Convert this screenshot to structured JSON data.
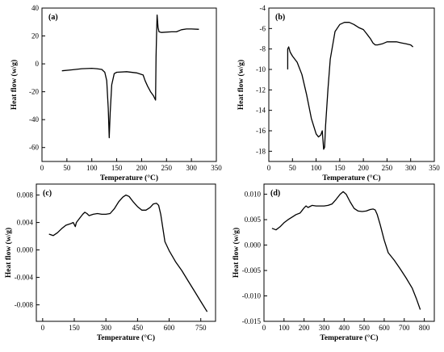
{
  "chart_data": [
    {
      "type": "line",
      "panel_label": "(a)",
      "xlabel": "Temperature (°C)",
      "ylabel": "Heat flow (w/g)",
      "xlim": [
        0,
        350
      ],
      "ylim": [
        -70,
        40
      ],
      "xticks": [
        "0",
        "50",
        "100",
        "150",
        "200",
        "250",
        "300",
        "350"
      ],
      "yticks": [
        "-60",
        "-40",
        "-20",
        "0",
        "20",
        "40"
      ],
      "xtick_values": [
        0,
        50,
        100,
        150,
        200,
        250,
        300,
        350
      ],
      "ytick_values": [
        -60,
        -40,
        -20,
        0,
        20,
        40
      ],
      "grid": false,
      "series": [
        {
          "x": [
            40,
            60,
            80,
            100,
            110,
            120,
            126,
            130,
            133,
            135,
            137,
            140,
            145,
            150,
            170,
            190,
            203,
            207,
            212,
            218,
            224,
            228,
            229,
            230,
            231,
            233,
            235,
            240,
            260,
            270,
            280,
            290,
            300,
            315
          ],
          "y": [
            -5,
            -4.3,
            -3.5,
            -3.2,
            -3.5,
            -4,
            -6,
            -12,
            -32,
            -53,
            -35,
            -15,
            -7,
            -6,
            -5.6,
            -6.5,
            -8,
            -12,
            -16,
            -20,
            -23,
            -26,
            5,
            20,
            35,
            26,
            23,
            22.5,
            23,
            23,
            24.5,
            25,
            25,
            24.8
          ]
        }
      ]
    },
    {
      "type": "line",
      "panel_label": "(b)",
      "xlabel": "Temperature (°C)",
      "ylabel": "Heat flow (w/g)",
      "xlim": [
        0,
        350
      ],
      "ylim": [
        -19,
        -4
      ],
      "xticks": [
        "0",
        "50",
        "100",
        "150",
        "200",
        "250",
        "300",
        "350"
      ],
      "yticks": [
        "-18",
        "-16",
        "-14",
        "-12",
        "-10",
        "-8",
        "-6",
        "-4"
      ],
      "xtick_values": [
        0,
        50,
        100,
        150,
        200,
        250,
        300,
        350
      ],
      "ytick_values": [
        -18,
        -16,
        -14,
        -12,
        -10,
        -8,
        -6,
        -4
      ],
      "grid": false,
      "series": [
        {
          "x": [
            40,
            40,
            42,
            45,
            50,
            60,
            70,
            80,
            90,
            100,
            105,
            110,
            113,
            116,
            118,
            120,
            125,
            130,
            140,
            150,
            160,
            170,
            180,
            190,
            200,
            205,
            210,
            215,
            220,
            225,
            230,
            240,
            250,
            260,
            270,
            280,
            290,
            300,
            305
          ],
          "y": [
            -10,
            -8,
            -7.8,
            -8.3,
            -8.7,
            -9.3,
            -10.5,
            -12.5,
            -14.8,
            -16.3,
            -16.6,
            -16.4,
            -16,
            -17.8,
            -17.6,
            -15.5,
            -12,
            -9,
            -6.3,
            -5.6,
            -5.4,
            -5.4,
            -5.6,
            -5.9,
            -6.1,
            -6.4,
            -6.7,
            -7,
            -7.4,
            -7.6,
            -7.6,
            -7.5,
            -7.3,
            -7.3,
            -7.3,
            -7.4,
            -7.5,
            -7.6,
            -7.8
          ]
        }
      ]
    },
    {
      "type": "line",
      "panel_label": "(c)",
      "xlabel": "Temperature (°C)",
      "ylabel": "Heat flow (w/g)",
      "xlim": [
        -30,
        820
      ],
      "ylim": [
        -0.0104,
        0.0096
      ],
      "xticks": [
        "0",
        "150",
        "300",
        "450",
        "600",
        "750"
      ],
      "yticks": [
        "-0.008",
        "-0.004",
        "0.000",
        "0.004",
        "0.008"
      ],
      "xtick_values": [
        0,
        150,
        300,
        450,
        600,
        750
      ],
      "ytick_values": [
        -0.008,
        -0.004,
        0,
        0.004,
        0.008
      ],
      "grid": false,
      "series": [
        {
          "x": [
            30,
            50,
            70,
            90,
            110,
            130,
            145,
            155,
            160,
            175,
            190,
            200,
            210,
            220,
            240,
            260,
            280,
            300,
            320,
            340,
            360,
            380,
            395,
            410,
            430,
            450,
            470,
            490,
            510,
            525,
            540,
            550,
            560,
            570,
            580,
            600,
            630,
            660,
            690,
            720,
            750,
            780
          ],
          "y": [
            0.0023,
            0.0021,
            0.0025,
            0.0031,
            0.0036,
            0.0038,
            0.004,
            0.0034,
            0.004,
            0.0046,
            0.0052,
            0.0055,
            0.0053,
            0.005,
            0.0052,
            0.0053,
            0.0052,
            0.0052,
            0.0053,
            0.006,
            0.007,
            0.0077,
            0.008,
            0.0078,
            0.007,
            0.0063,
            0.0058,
            0.0058,
            0.0062,
            0.0067,
            0.0068,
            0.0065,
            0.0052,
            0.0032,
            0.0012,
            -0.0001,
            -0.0017,
            -0.003,
            -0.0045,
            -0.006,
            -0.0075,
            -0.009
          ]
        }
      ]
    },
    {
      "type": "line",
      "panel_label": "(d)",
      "xlabel": "Temperature (°C)",
      "ylabel": "Heat flow (w/g)",
      "xlim": [
        0,
        850
      ],
      "ylim": [
        -0.015,
        0.012
      ],
      "xticks": [
        "0",
        "100",
        "200",
        "300",
        "400",
        "500",
        "600",
        "700",
        "800"
      ],
      "yticks": [
        "-0.015",
        "-0.010",
        "-0.005",
        "0.000",
        "0.005",
        "0.010"
      ],
      "xtick_values": [
        0,
        100,
        200,
        300,
        400,
        500,
        600,
        700,
        800
      ],
      "ytick_values": [
        -0.015,
        -0.01,
        -0.005,
        0,
        0.005,
        0.01
      ],
      "grid": false,
      "series": [
        {
          "x": [
            40,
            60,
            80,
            100,
            120,
            140,
            160,
            180,
            190,
            200,
            210,
            220,
            240,
            260,
            280,
            300,
            320,
            340,
            360,
            380,
            395,
            410,
            430,
            450,
            470,
            490,
            510,
            530,
            545,
            555,
            565,
            580,
            600,
            620,
            650,
            680,
            710,
            740,
            760,
            780
          ],
          "y": [
            0.0033,
            0.003,
            0.0036,
            0.0044,
            0.005,
            0.0055,
            0.006,
            0.0063,
            0.0068,
            0.0073,
            0.0077,
            0.0074,
            0.0078,
            0.0077,
            0.0077,
            0.0077,
            0.0078,
            0.0081,
            0.009,
            0.01,
            0.0105,
            0.01,
            0.0085,
            0.0072,
            0.0067,
            0.0066,
            0.0067,
            0.007,
            0.0071,
            0.0069,
            0.006,
            0.004,
            0.001,
            -0.0015,
            -0.003,
            -0.0047,
            -0.0065,
            -0.0085,
            -0.0105,
            -0.0127
          ]
        }
      ]
    }
  ]
}
